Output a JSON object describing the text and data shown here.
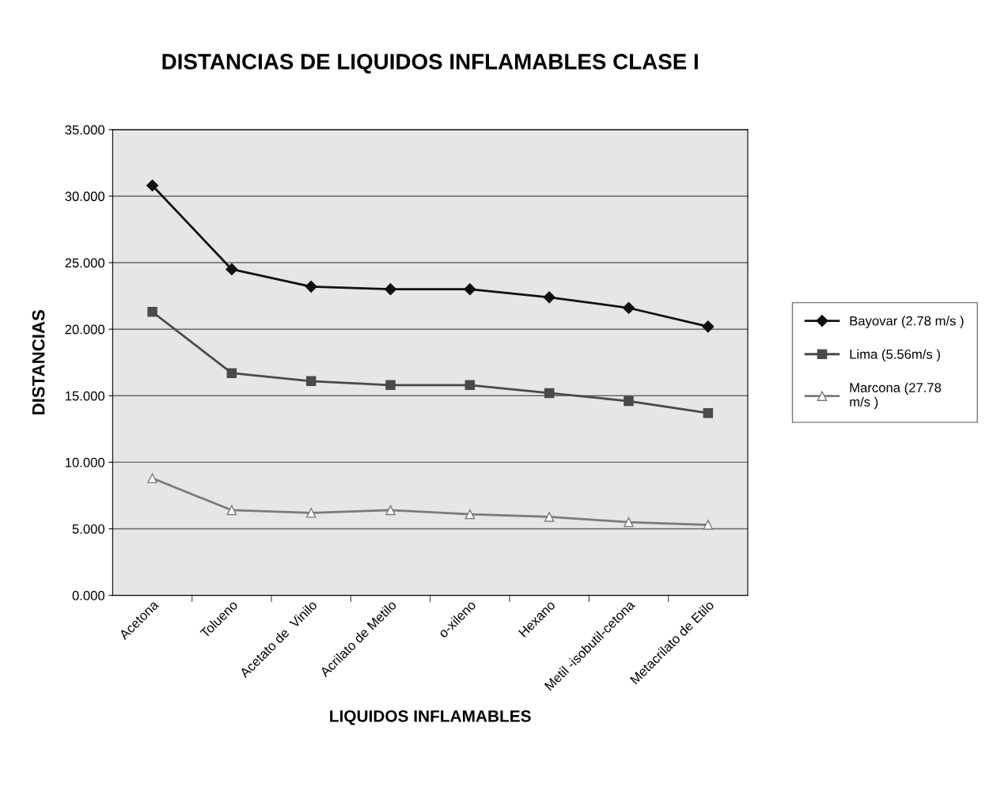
{
  "chart_data": {
    "type": "line",
    "title": "DISTANCIAS DE LIQUIDOS INFLAMABLES CLASE I",
    "xlabel": "LIQUIDOS INFLAMABLES",
    "ylabel": "DISTANCIAS",
    "categories": [
      "Acetona",
      "Tolueno",
      "Acetato de  Vinilo",
      "Acrilato de Metilo",
      "o-xileno",
      "Hexano",
      "Metil -isobutil-cetona",
      "Metacrilato de Etilo"
    ],
    "series": [
      {
        "name": "Bayovar (2.78 m/s )",
        "color": "#111111",
        "marker": "diamond",
        "values": [
          30.8,
          24.5,
          23.2,
          23.0,
          23.0,
          22.4,
          21.6,
          20.2
        ]
      },
      {
        "name": "Lima (5.56m/s )",
        "color": "#4a4a4a",
        "marker": "square",
        "values": [
          21.3,
          16.7,
          16.1,
          15.8,
          15.8,
          15.2,
          14.6,
          13.7
        ]
      },
      {
        "name": "Marcona (27.78\nm/s )",
        "color": "#7a7a7a",
        "marker": "triangle",
        "values": [
          8.8,
          6.4,
          6.2,
          6.4,
          6.1,
          5.9,
          5.5,
          5.3
        ]
      }
    ],
    "ylim": [
      0,
      35
    ],
    "yticks": [
      {
        "value": 0,
        "label": "0.000"
      },
      {
        "value": 5,
        "label": "5.000"
      },
      {
        "value": 10,
        "label": "10.000"
      },
      {
        "value": 15,
        "label": "15.000"
      },
      {
        "value": 20,
        "label": "20.000"
      },
      {
        "value": 25,
        "label": "25.000"
      },
      {
        "value": 30,
        "label": "30.000"
      },
      {
        "value": 35,
        "label": "35.000"
      }
    ],
    "grid": "y",
    "legend": "right",
    "line_style": "solid"
  }
}
